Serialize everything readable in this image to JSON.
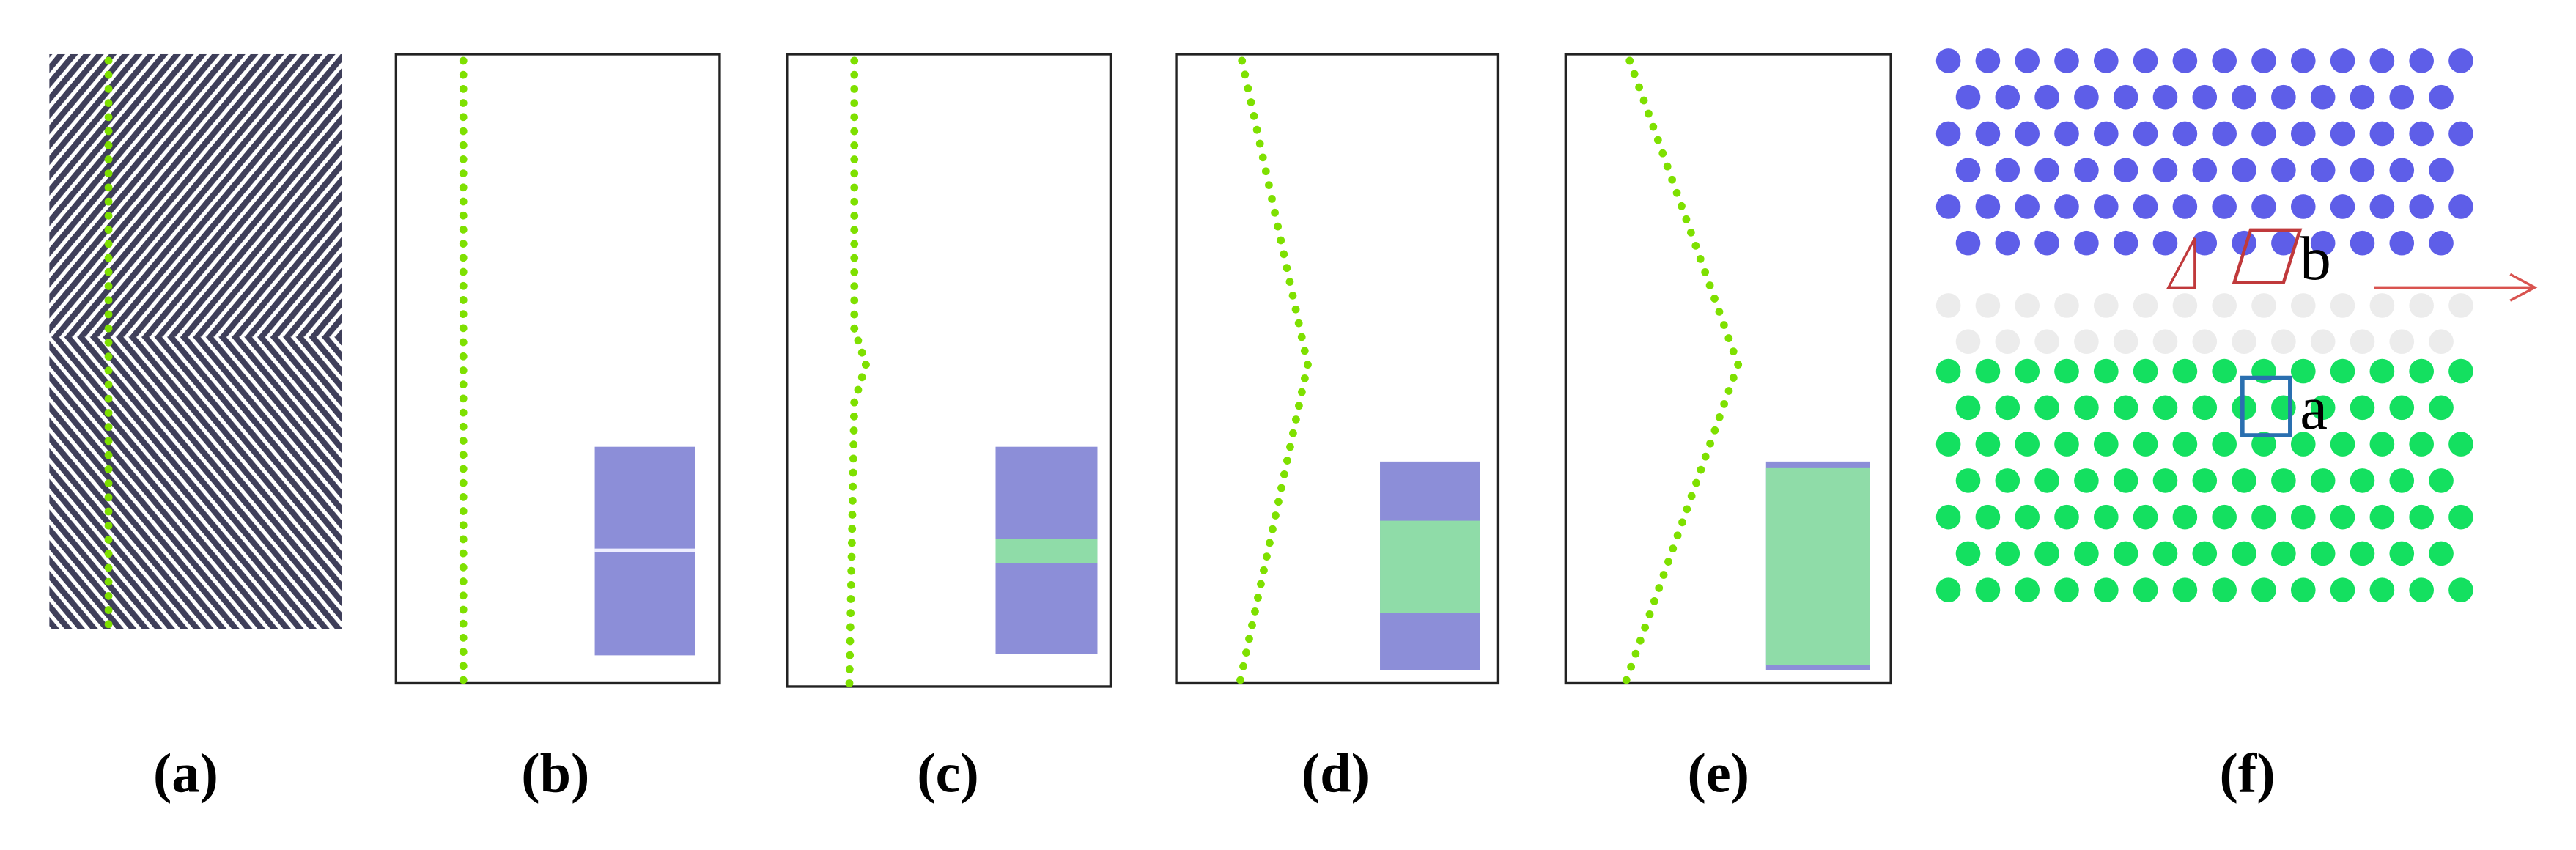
{
  "panels": [
    {
      "label": "(a)"
    },
    {
      "label": "(b)"
    },
    {
      "label": "(c)"
    },
    {
      "label": "(d)"
    },
    {
      "label": "(e)"
    },
    {
      "label": "(f)"
    }
  ],
  "lattice_labels": {
    "upper": "b",
    "lower": "a"
  }
}
